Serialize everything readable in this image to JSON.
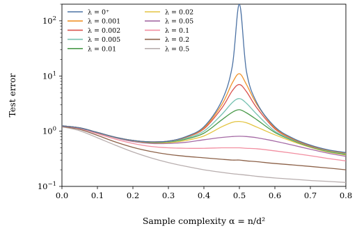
{
  "chart_data": {
    "type": "line",
    "title": "",
    "xlabel": "Sample complexity α = n/d²",
    "ylabel": "Test error",
    "xlim": [
      0.0,
      0.8
    ],
    "ylim": [
      0.1,
      200
    ],
    "y_scale": "log",
    "grid": false,
    "legend_position": "top-left",
    "legend_columns": 2,
    "x_ticks": [
      {
        "value": 0.0,
        "label": "0.0"
      },
      {
        "value": 0.1,
        "label": "0.1"
      },
      {
        "value": 0.2,
        "label": "0.2"
      },
      {
        "value": 0.3,
        "label": "0.3"
      },
      {
        "value": 0.4,
        "label": "0.4"
      },
      {
        "value": 0.5,
        "label": "0.5"
      },
      {
        "value": 0.6,
        "label": "0.6"
      },
      {
        "value": 0.7,
        "label": "0.7"
      },
      {
        "value": 0.8,
        "label": "0.8"
      }
    ],
    "y_ticks": [
      {
        "value": 0.1,
        "base": "10",
        "exp": "−1"
      },
      {
        "value": 1,
        "base": "10",
        "exp": "0"
      },
      {
        "value": 10,
        "base": "10",
        "exp": "1"
      },
      {
        "value": 100,
        "base": "10",
        "exp": "2"
      }
    ],
    "x": [
      0.0,
      0.05,
      0.1,
      0.15,
      0.2,
      0.25,
      0.3,
      0.35,
      0.4,
      0.45,
      0.48,
      0.5,
      0.52,
      0.55,
      0.6,
      0.65,
      0.7,
      0.75,
      0.8
    ],
    "series": [
      {
        "name": "λ = 0⁺",
        "color": "#4c72a4",
        "values": [
          1.25,
          1.15,
          0.95,
          0.78,
          0.68,
          0.64,
          0.66,
          0.8,
          1.2,
          3.5,
          15,
          200,
          12,
          3.2,
          1.2,
          0.75,
          0.56,
          0.46,
          0.41
        ]
      },
      {
        "name": "λ = 0.001",
        "color": "#f0932b",
        "values": [
          1.25,
          1.15,
          0.95,
          0.78,
          0.68,
          0.64,
          0.66,
          0.79,
          1.15,
          3.0,
          7.5,
          11,
          7.0,
          3.0,
          1.15,
          0.73,
          0.55,
          0.45,
          0.4
        ]
      },
      {
        "name": "λ = 0.002",
        "color": "#d9534f",
        "values": [
          1.25,
          1.15,
          0.95,
          0.78,
          0.68,
          0.64,
          0.66,
          0.78,
          1.1,
          2.6,
          5.4,
          7.0,
          5.2,
          2.6,
          1.1,
          0.72,
          0.54,
          0.45,
          0.4
        ]
      },
      {
        "name": "λ = 0.005",
        "color": "#76c1b1",
        "values": [
          1.25,
          1.15,
          0.95,
          0.78,
          0.68,
          0.64,
          0.65,
          0.75,
          1.0,
          2.0,
          3.3,
          3.9,
          3.2,
          2.0,
          1.0,
          0.7,
          0.53,
          0.44,
          0.39
        ]
      },
      {
        "name": "λ = 0.01",
        "color": "#4a9a4a",
        "values": [
          1.25,
          1.15,
          0.95,
          0.78,
          0.68,
          0.63,
          0.64,
          0.72,
          0.92,
          1.6,
          2.2,
          2.45,
          2.15,
          1.6,
          0.95,
          0.68,
          0.52,
          0.43,
          0.38
        ]
      },
      {
        "name": "λ = 0.02",
        "color": "#e3c440",
        "values": [
          1.25,
          1.15,
          0.94,
          0.77,
          0.67,
          0.62,
          0.62,
          0.68,
          0.82,
          1.2,
          1.45,
          1.5,
          1.42,
          1.18,
          0.86,
          0.65,
          0.51,
          0.42,
          0.37
        ]
      },
      {
        "name": "λ = 0.05",
        "color": "#a56aa5",
        "values": [
          1.25,
          1.14,
          0.93,
          0.76,
          0.65,
          0.6,
          0.6,
          0.63,
          0.7,
          0.77,
          0.8,
          0.81,
          0.8,
          0.76,
          0.66,
          0.56,
          0.47,
          0.4,
          0.35
        ]
      },
      {
        "name": "λ = 0.1",
        "color": "#f28ea0",
        "values": [
          1.24,
          1.12,
          0.9,
          0.72,
          0.6,
          0.53,
          0.5,
          0.49,
          0.49,
          0.5,
          0.5,
          0.5,
          0.49,
          0.48,
          0.44,
          0.4,
          0.36,
          0.32,
          0.29
        ]
      },
      {
        "name": "λ = 0.2",
        "color": "#8c6148",
        "values": [
          1.22,
          1.08,
          0.84,
          0.64,
          0.51,
          0.43,
          0.38,
          0.35,
          0.33,
          0.31,
          0.3,
          0.3,
          0.29,
          0.28,
          0.26,
          0.245,
          0.23,
          0.215,
          0.2
        ]
      },
      {
        "name": "λ = 0.5",
        "color": "#b8aeae",
        "values": [
          1.2,
          1.02,
          0.76,
          0.56,
          0.42,
          0.33,
          0.27,
          0.23,
          0.2,
          0.18,
          0.17,
          0.165,
          0.16,
          0.152,
          0.142,
          0.135,
          0.128,
          0.123,
          0.118
        ]
      }
    ]
  }
}
